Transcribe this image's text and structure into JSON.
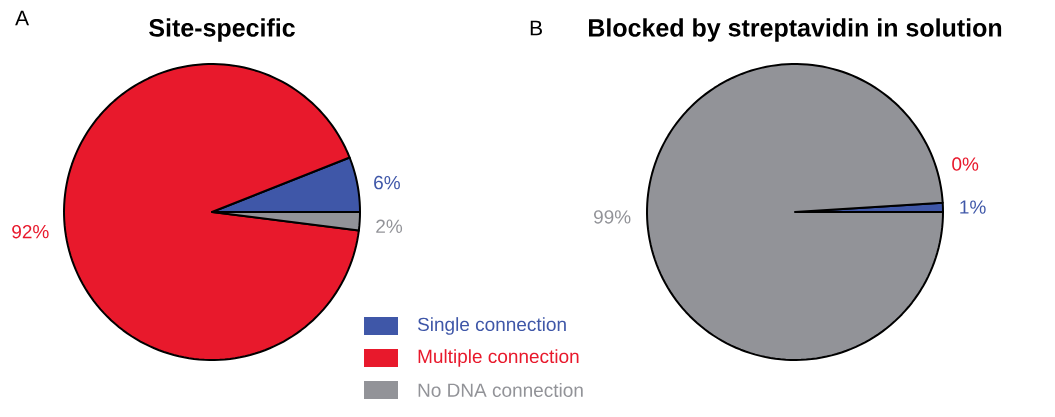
{
  "chart_data": [
    {
      "type": "pie",
      "title": "Site-specific",
      "annotations": [
        "A"
      ],
      "categories": [
        "Single connection",
        "Multiple connection",
        "No DNA connection"
      ],
      "values": [
        6,
        92,
        2
      ],
      "value_labels": [
        "6%",
        "92%",
        "2%"
      ],
      "colors": [
        "#3f57a8",
        "#e8192c",
        "#929398"
      ],
      "legend": "bottom right"
    },
    {
      "type": "pie",
      "title": "Blocked by streptavidin in solution",
      "annotations": [
        "B"
      ],
      "categories": [
        null,
        null,
        null
      ],
      "values": [
        1,
        0,
        99
      ],
      "value_labels": [
        "1%",
        "0%",
        "99%"
      ],
      "colors": [
        "#3f57a8",
        "#e8192c",
        "#929398"
      ]
    }
  ]
}
